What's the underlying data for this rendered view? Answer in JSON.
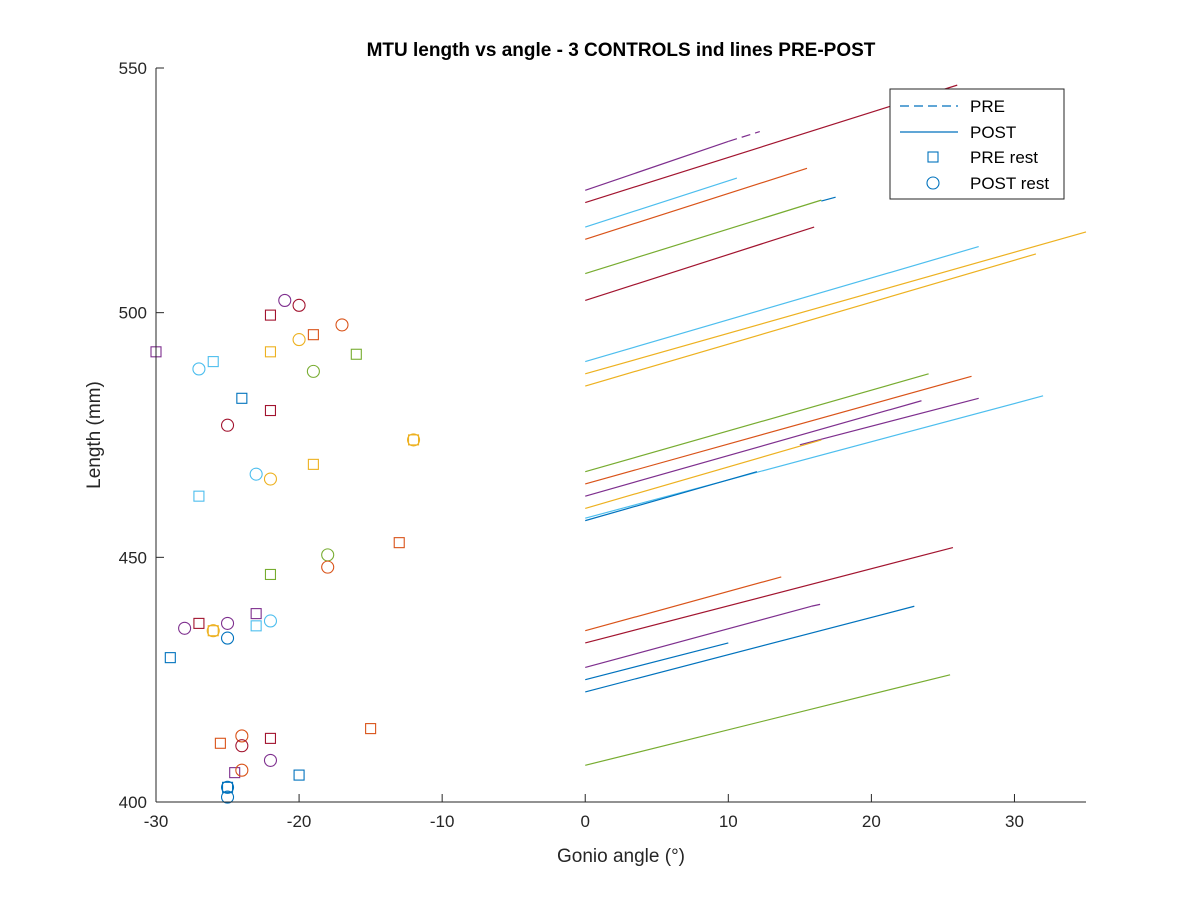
{
  "chart_data": {
    "type": "scatter",
    "title": "MTU length vs angle - 3 CONTROLS ind lines PRE-POST",
    "xlabel": "Gonio angle (°)",
    "ylabel": "Length (mm)",
    "xlim": [
      -30,
      35
    ],
    "ylim": [
      400,
      550
    ],
    "xticks": [
      -30,
      -20,
      -10,
      0,
      10,
      20,
      30
    ],
    "yticks": [
      400,
      450,
      500,
      550
    ],
    "grid": false,
    "legend_position": "top-right",
    "legend": [
      {
        "label": "PRE",
        "marker": "dashed-line",
        "color": "#0072BD"
      },
      {
        "label": "POST",
        "marker": "solid-line",
        "color": "#0072BD"
      },
      {
        "label": "PRE rest",
        "marker": "square",
        "color": "#0072BD"
      },
      {
        "label": "POST rest",
        "marker": "circle",
        "color": "#0072BD"
      }
    ],
    "colors": {
      "blue": "#0072BD",
      "orange": "#D95319",
      "yellow": "#EDB120",
      "purple": "#7E2F8E",
      "green": "#77AC30",
      "cyan": "#4DBEEE",
      "darkred": "#A2142F"
    },
    "lines": [
      {
        "color": "#7E2F8E",
        "style": "solid",
        "x": [
          0,
          10
        ],
        "y": [
          525,
          535
        ]
      },
      {
        "color": "#7E2F8E",
        "style": "dashed",
        "x": [
          10,
          12.2
        ],
        "y": [
          535,
          537
        ]
      },
      {
        "color": "#A2142F",
        "style": "solid",
        "x": [
          0,
          26
        ],
        "y": [
          522.5,
          546.5
        ]
      },
      {
        "color": "#4DBEEE",
        "style": "solid",
        "x": [
          0,
          10.6
        ],
        "y": [
          517.5,
          527.5
        ]
      },
      {
        "color": "#D95319",
        "style": "solid",
        "x": [
          0,
          15.5
        ],
        "y": [
          515,
          529.5
        ]
      },
      {
        "color": "#77AC30",
        "style": "solid",
        "x": [
          0,
          16.5
        ],
        "y": [
          508,
          523
        ]
      },
      {
        "color": "#0072BD",
        "style": "solid",
        "x": [
          16.5,
          17.5
        ],
        "y": [
          522.8,
          523.6
        ]
      },
      {
        "color": "#A2142F",
        "style": "solid",
        "x": [
          0,
          16
        ],
        "y": [
          502.5,
          517.5
        ]
      },
      {
        "color": "#4DBEEE",
        "style": "solid",
        "x": [
          0,
          27.5
        ],
        "y": [
          490,
          513.5
        ]
      },
      {
        "color": "#EDB120",
        "style": "solid",
        "x": [
          0,
          35
        ],
        "y": [
          487.5,
          516.5
        ]
      },
      {
        "color": "#EDB120",
        "style": "solid",
        "x": [
          0,
          31.5
        ],
        "y": [
          485,
          512
        ]
      },
      {
        "color": "#77AC30",
        "style": "solid",
        "x": [
          0,
          24
        ],
        "y": [
          467.5,
          487.5
        ]
      },
      {
        "color": "#D95319",
        "style": "solid",
        "x": [
          0,
          27
        ],
        "y": [
          465,
          487
        ]
      },
      {
        "color": "#7E2F8E",
        "style": "solid",
        "x": [
          0,
          23.5
        ],
        "y": [
          462.5,
          482
        ]
      },
      {
        "color": "#7E2F8E",
        "style": "solid",
        "x": [
          15,
          27.5
        ],
        "y": [
          473,
          482.5
        ]
      },
      {
        "color": "#EDB120",
        "style": "solid",
        "x": [
          0,
          16.5
        ],
        "y": [
          460,
          474
        ]
      },
      {
        "color": "#4DBEEE",
        "style": "solid",
        "x": [
          0,
          32
        ],
        "y": [
          458,
          483
        ]
      },
      {
        "color": "#0072BD",
        "style": "solid",
        "x": [
          0,
          12
        ],
        "y": [
          457.5,
          467.5
        ]
      },
      {
        "color": "#D95319",
        "style": "solid",
        "x": [
          0,
          13.7
        ],
        "y": [
          435,
          446
        ]
      },
      {
        "color": "#A2142F",
        "style": "solid",
        "x": [
          0,
          25.7
        ],
        "y": [
          432.5,
          452
        ]
      },
      {
        "color": "#7E2F8E",
        "style": "solid",
        "x": [
          0,
          15.8
        ],
        "y": [
          427.5,
          440
        ]
      },
      {
        "color": "#7E2F8E",
        "style": "dashed",
        "x": [
          15.8,
          16.6
        ],
        "y": [
          440,
          440.5
        ]
      },
      {
        "color": "#0072BD",
        "style": "solid",
        "x": [
          0,
          10
        ],
        "y": [
          425,
          432.5
        ]
      },
      {
        "color": "#0072BD",
        "style": "solid",
        "x": [
          0,
          23
        ],
        "y": [
          422.5,
          440
        ]
      },
      {
        "color": "#77AC30",
        "style": "solid",
        "x": [
          0,
          25.5
        ],
        "y": [
          407.5,
          426
        ]
      }
    ],
    "pre_rest": [
      {
        "x": -30,
        "y": 492,
        "color": "#7E2F8E"
      },
      {
        "x": -26,
        "y": 490,
        "color": "#4DBEEE"
      },
      {
        "x": -22,
        "y": 499.5,
        "color": "#A2142F"
      },
      {
        "x": -22,
        "y": 492,
        "color": "#EDB120"
      },
      {
        "x": -19,
        "y": 495.5,
        "color": "#D95319"
      },
      {
        "x": -16,
        "y": 491.5,
        "color": "#77AC30"
      },
      {
        "x": -24,
        "y": 482.5,
        "color": "#0072BD"
      },
      {
        "x": -22,
        "y": 480,
        "color": "#A2142F"
      },
      {
        "x": -12,
        "y": 474,
        "color": "#EDB120"
      },
      {
        "x": -19,
        "y": 469,
        "color": "#EDB120"
      },
      {
        "x": -27,
        "y": 462.5,
        "color": "#4DBEEE"
      },
      {
        "x": -13,
        "y": 453,
        "color": "#D95319"
      },
      {
        "x": -22,
        "y": 446.5,
        "color": "#77AC30"
      },
      {
        "x": -23,
        "y": 438.5,
        "color": "#7E2F8E"
      },
      {
        "x": -27,
        "y": 436.5,
        "color": "#A2142F"
      },
      {
        "x": -26,
        "y": 435,
        "color": "#EDB120"
      },
      {
        "x": -23,
        "y": 436,
        "color": "#4DBEEE"
      },
      {
        "x": -29,
        "y": 429.5,
        "color": "#0072BD"
      },
      {
        "x": -15,
        "y": 415,
        "color": "#D95319"
      },
      {
        "x": -22,
        "y": 413,
        "color": "#A2142F"
      },
      {
        "x": -25.5,
        "y": 412,
        "color": "#D95319"
      },
      {
        "x": -24.5,
        "y": 406,
        "color": "#7E2F8E"
      },
      {
        "x": -20,
        "y": 405.5,
        "color": "#0072BD"
      },
      {
        "x": -25,
        "y": 403,
        "color": "#0072BD"
      }
    ],
    "post_rest": [
      {
        "x": -21,
        "y": 502.5,
        "color": "#7E2F8E"
      },
      {
        "x": -20,
        "y": 501.5,
        "color": "#A2142F"
      },
      {
        "x": -17,
        "y": 497.5,
        "color": "#D95319"
      },
      {
        "x": -20,
        "y": 494.5,
        "color": "#EDB120"
      },
      {
        "x": -27,
        "y": 488.5,
        "color": "#4DBEEE"
      },
      {
        "x": -19,
        "y": 488,
        "color": "#77AC30"
      },
      {
        "x": -25,
        "y": 477,
        "color": "#A2142F"
      },
      {
        "x": -12,
        "y": 474,
        "color": "#EDB120"
      },
      {
        "x": -23,
        "y": 467,
        "color": "#4DBEEE"
      },
      {
        "x": -22,
        "y": 466,
        "color": "#EDB120"
      },
      {
        "x": -18,
        "y": 450.5,
        "color": "#77AC30"
      },
      {
        "x": -18,
        "y": 448,
        "color": "#D95319"
      },
      {
        "x": -22,
        "y": 437,
        "color": "#4DBEEE"
      },
      {
        "x": -25,
        "y": 436.5,
        "color": "#7E2F8E"
      },
      {
        "x": -28,
        "y": 435.5,
        "color": "#7E2F8E"
      },
      {
        "x": -26,
        "y": 435,
        "color": "#EDB120"
      },
      {
        "x": -25,
        "y": 433.5,
        "color": "#0072BD"
      },
      {
        "x": -24,
        "y": 413.5,
        "color": "#D95319"
      },
      {
        "x": -24,
        "y": 411.5,
        "color": "#A2142F"
      },
      {
        "x": -22,
        "y": 408.5,
        "color": "#7E2F8E"
      },
      {
        "x": -24,
        "y": 406.5,
        "color": "#D95319"
      },
      {
        "x": -25,
        "y": 403,
        "color": "#0072BD"
      },
      {
        "x": -25,
        "y": 401,
        "color": "#0072BD"
      }
    ]
  }
}
